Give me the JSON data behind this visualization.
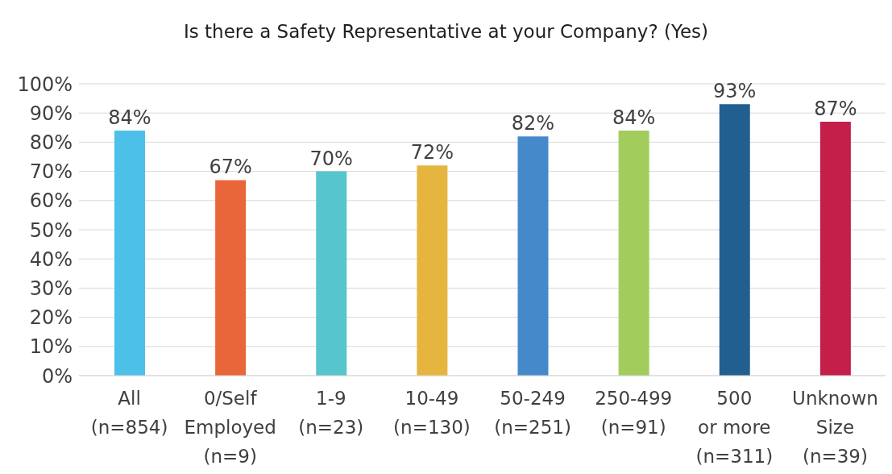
{
  "chart_data": {
    "type": "bar",
    "title": "Is there a Safety Representative at your Company? (Yes)",
    "categories": [
      "All\n(n=854)",
      "0/Self\nEmployed\n(n=9)",
      "1-9\n(n=23)",
      "10-49\n(n=130)",
      "50-249\n(n=251)",
      "250-499\n(n=91)",
      "500\nor more\n(n=311)",
      "Unknown\nSize\n(n=39)"
    ],
    "values": [
      84,
      67,
      70,
      72,
      82,
      84,
      93,
      87
    ],
    "value_labels": [
      "84%",
      "67%",
      "70%",
      "72%",
      "82%",
      "84%",
      "93%",
      "87%"
    ],
    "colors": [
      "#4dc0ea",
      "#e8663a",
      "#56c5cc",
      "#e5b540",
      "#4589cb",
      "#a2cd5c",
      "#225f91",
      "#c41e4a"
    ],
    "ylim": [
      0,
      100
    ],
    "yticks": [
      {
        "value": 0,
        "label": "0%"
      },
      {
        "value": 10,
        "label": "10%"
      },
      {
        "value": 20,
        "label": "20%"
      },
      {
        "value": 30,
        "label": "30%"
      },
      {
        "value": 40,
        "label": "40%"
      },
      {
        "value": 50,
        "label": "50%"
      },
      {
        "value": 60,
        "label": "60%"
      },
      {
        "value": 70,
        "label": "70%"
      },
      {
        "value": 80,
        "label": "80%"
      },
      {
        "value": 90,
        "label": "90%"
      },
      {
        "value": 100,
        "label": "100%"
      }
    ],
    "grid": "y",
    "legend": false
  }
}
